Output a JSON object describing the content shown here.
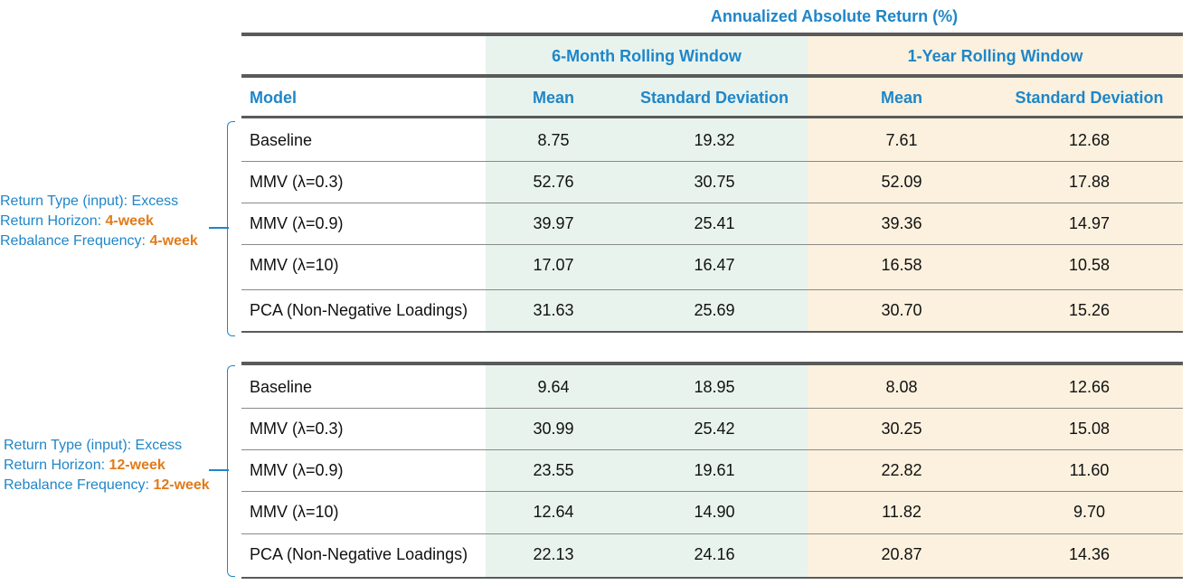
{
  "title": "Annualized Absolute Return (%)",
  "window_headers": {
    "six_month": "6-Month Rolling Window",
    "one_year": "1-Year Rolling Window"
  },
  "column_headers": {
    "model": "Model",
    "mean_6m": "Mean",
    "sd_6m": "Standard Deviation",
    "mean_1y": "Mean",
    "sd_1y": "Standard Deviation"
  },
  "colors": {
    "accent_blue": "#1f86c8",
    "accent_orange": "#e07b1a",
    "band_6m": "#e8f3ee",
    "band_1y": "#fcf1de"
  },
  "groups": [
    {
      "label": {
        "line1": "Return Type (input): Excess",
        "line2_prefix": "Return Horizon: ",
        "line2_value": "4-week",
        "line3_prefix": "Rebalance  Frequency: ",
        "line3_value": "4-week"
      },
      "rows": [
        {
          "model": "Baseline",
          "mean_6m": "8.75",
          "sd_6m": "19.32",
          "mean_1y": "7.61",
          "sd_1y": "12.68"
        },
        {
          "model": "MMV (λ=0.3)",
          "mean_6m": "52.76",
          "sd_6m": "30.75",
          "mean_1y": "52.09",
          "sd_1y": "17.88"
        },
        {
          "model": "MMV (λ=0.9)",
          "mean_6m": "39.97",
          "sd_6m": "25.41",
          "mean_1y": "39.36",
          "sd_1y": "14.97"
        },
        {
          "model": "MMV (λ=10)",
          "mean_6m": "17.07",
          "sd_6m": "16.47",
          "mean_1y": "16.58",
          "sd_1y": "10.58"
        },
        {
          "model": "PCA (Non-Negative Loadings)",
          "mean_6m": "31.63",
          "sd_6m": "25.69",
          "mean_1y": "30.70",
          "sd_1y": "15.26"
        }
      ]
    },
    {
      "label": {
        "line1": "Return Type (input): Excess",
        "line2_prefix": "Return Horizon: ",
        "line2_value": "12-week",
        "line3_prefix": "Rebalance  Frequency: ",
        "line3_value": "12-week"
      },
      "rows": [
        {
          "model": "Baseline",
          "mean_6m": "9.64",
          "sd_6m": "18.95",
          "mean_1y": "8.08",
          "sd_1y": "12.66"
        },
        {
          "model": "MMV (λ=0.3)",
          "mean_6m": "30.99",
          "sd_6m": "25.42",
          "mean_1y": "30.25",
          "sd_1y": "15.08"
        },
        {
          "model": "MMV (λ=0.9)",
          "mean_6m": "23.55",
          "sd_6m": "19.61",
          "mean_1y": "22.82",
          "sd_1y": "11.60"
        },
        {
          "model": "MMV (λ=10)",
          "mean_6m": "12.64",
          "sd_6m": "14.90",
          "mean_1y": "11.82",
          "sd_1y": "9.70"
        },
        {
          "model": "PCA (Non-Negative Loadings)",
          "mean_6m": "22.13",
          "sd_6m": "24.16",
          "mean_1y": "20.87",
          "sd_1y": "14.36"
        }
      ]
    }
  ]
}
